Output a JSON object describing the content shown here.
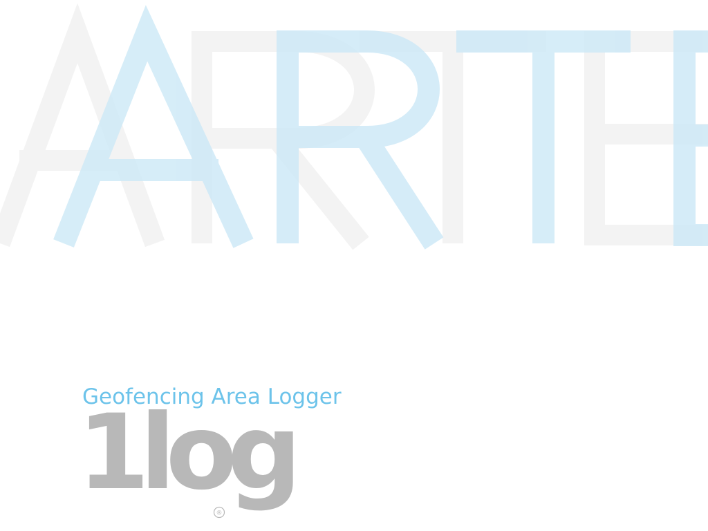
{
  "background": {
    "letters": [
      "A",
      "R",
      "T",
      "E"
    ],
    "colors": {
      "light_gray": "#f3f3f3",
      "light_blue": "#d3ecf8"
    }
  },
  "splash": {
    "tagline": "Geofencing Area Logger",
    "logo_text": "1log",
    "registered_mark": "®",
    "colors": {
      "tagline": "#6cc3ea",
      "logo": "#b8b8b8"
    }
  }
}
